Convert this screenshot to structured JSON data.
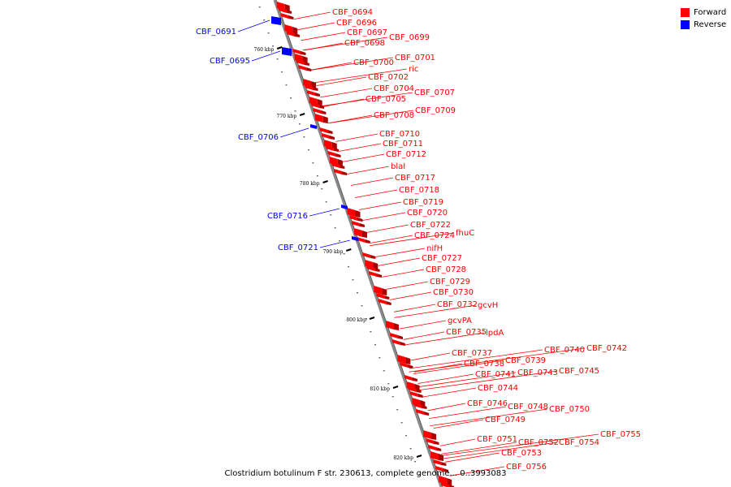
{
  "legend": {
    "forward_label": "Forward",
    "reverse_label": "Reverse",
    "forward_color": "#ff0000",
    "reverse_color": "#0000ff"
  },
  "caption": "Clostridium botulinum F str. 230613, complete genome... 0..3993083",
  "kbp_labels": [
    "760 kbp",
    "770 kbp",
    "780 kbp",
    "790 kbp",
    "800 kbp",
    "810 kbp",
    "820 kbp"
  ],
  "forward_genes": [
    "CBF_0694",
    "CBF_0696",
    "CBF_0697",
    "CBF_0698",
    "CBF_0699",
    "CBF_0700",
    "CBF_0701",
    "ric",
    "CBF_0702",
    "CBF_0704",
    "CBF_0705",
    "CBF_0707",
    "CBF_0708",
    "CBF_0709",
    "CBF_0710",
    "CBF_0711",
    "CBF_0712",
    "blaI",
    "CBF_0717",
    "CBF_0718",
    "CBF_0719",
    "CBF_0720",
    "CBF_0722",
    "CBF_0724",
    "fhuC",
    "nifH",
    "CBF_0727",
    "CBF_0728",
    "CBF_0729",
    "CBF_0730",
    "CBF_0732",
    "gcvH",
    "gcvPA",
    "CBF_0735",
    "lpdA",
    "CBF_0737",
    "CBF_0738",
    "CBF_0739",
    "CBF_0740",
    "CBF_0742",
    "CBF_0741",
    "CBF_0743",
    "CBF_0745",
    "CBF_0744",
    "CBF_0746",
    "CBF_0748",
    "CBF_0750",
    "CBF_0749",
    "CBF_0751",
    "CBF_0752",
    "CBF_0754",
    "CBF_0755",
    "CBF_0753",
    "CBF_0756"
  ],
  "reverse_genes": [
    "CBF_0691",
    "CBF_0695",
    "CBF_0706",
    "CBF_0716",
    "CBF_0721"
  ]
}
